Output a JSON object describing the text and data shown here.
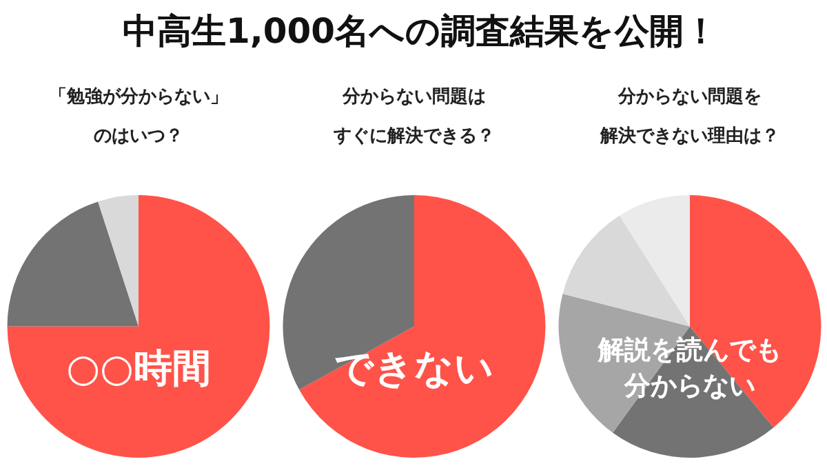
{
  "chart_data": [
    {
      "type": "other",
      "title": "中高生1,000名への調査結果を公開！"
    },
    {
      "type": "pie",
      "title": "「勉強が分からない」",
      "subtitle": "のはいつ？",
      "categories": [
        null,
        null,
        null
      ],
      "values": [
        75,
        20,
        5
      ],
      "colors": [
        "#ff5349",
        "#737373",
        "#d9d9d9"
      ],
      "annotations": [
        "○○時間"
      ]
    },
    {
      "type": "pie",
      "title": "分からない問題は",
      "subtitle": "すぐに解決できる？",
      "categories": [
        null,
        null
      ],
      "values": [
        67,
        33
      ],
      "colors": [
        "#ff5349",
        "#737373"
      ],
      "annotations": [
        "できない"
      ]
    },
    {
      "type": "pie",
      "title": "分からない問題を",
      "subtitle": "解決できない理由は？",
      "categories": [
        null,
        null,
        null,
        null,
        null
      ],
      "values": [
        39,
        21,
        19,
        12,
        9
      ],
      "colors": [
        "#ff5349",
        "#737373",
        "#a6a6a6",
        "#d9d9d9",
        "#ebebeb"
      ],
      "annotations": [
        "解説を読んでも",
        "分からない"
      ]
    }
  ]
}
